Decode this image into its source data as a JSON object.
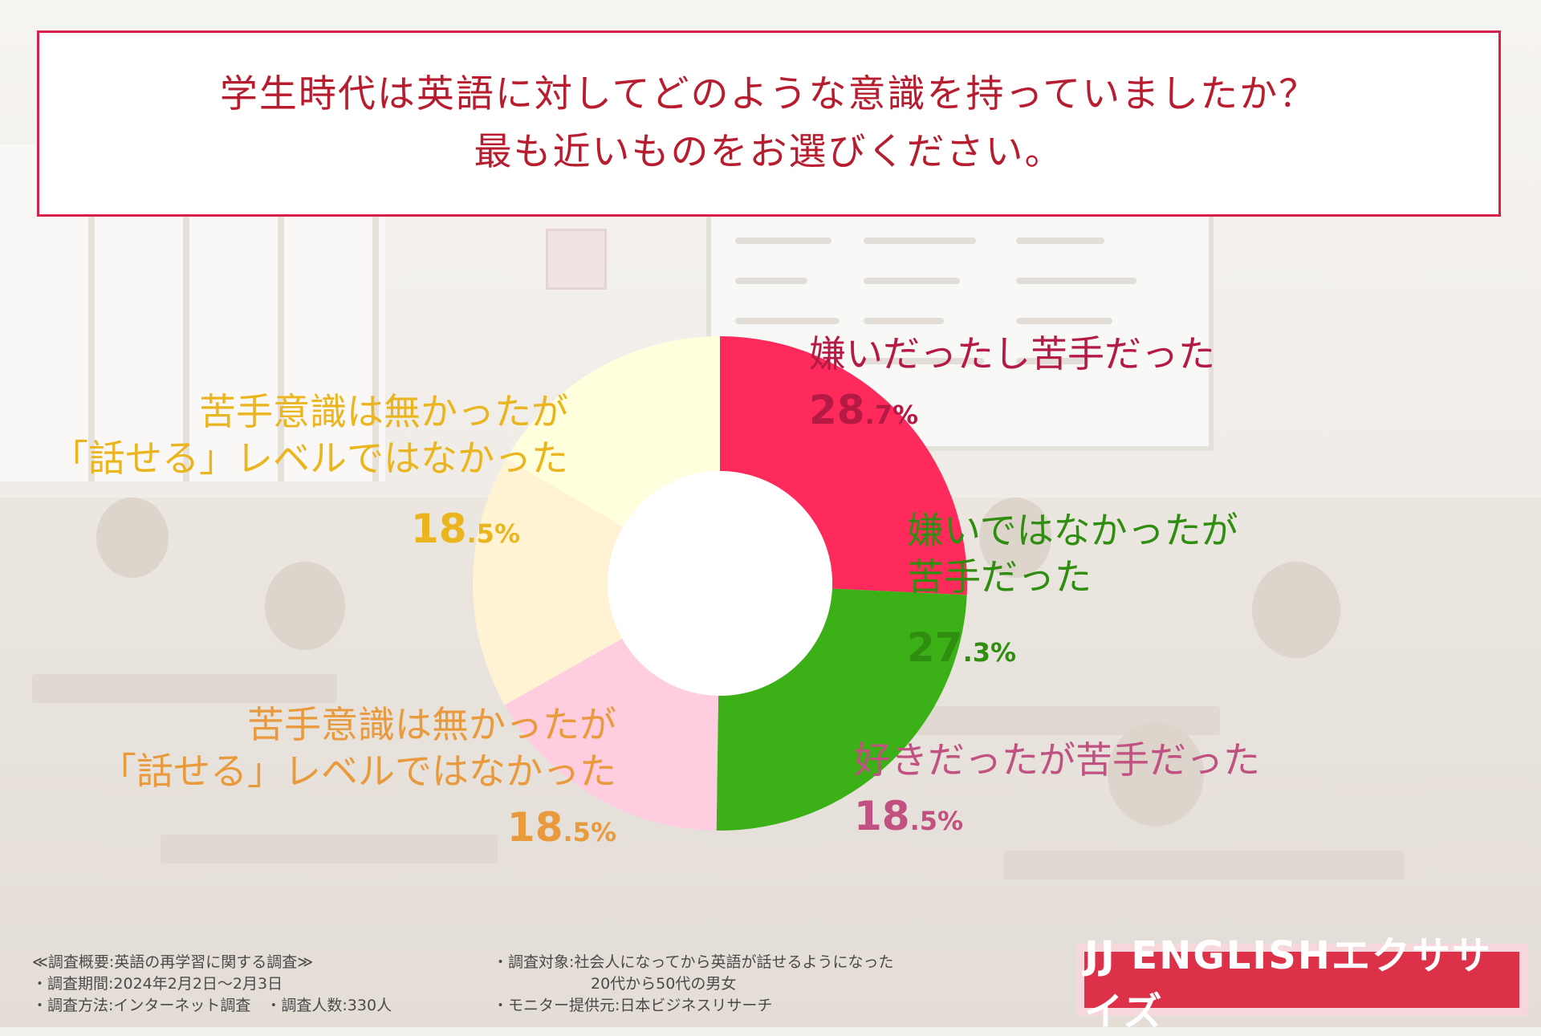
{
  "question": {
    "line1": "学生時代は英語に対してどのような意識を持っていましたか？",
    "line2": "最も近いものをお選びください。"
  },
  "chart_data": {
    "type": "pie",
    "variant": "donut",
    "slices": [
      {
        "label_lines": [
          "嫌いだったし苦手だった"
        ],
        "value": 28.7,
        "pct_int": "28",
        "pct_dec": ".7%",
        "color": "#ff2a5c",
        "label_color": "#b51a45"
      },
      {
        "label_lines": [
          "嫌いではなかったが",
          "苦手だった"
        ],
        "value": 27.3,
        "pct_int": "27",
        "pct_dec": ".3%",
        "color": "#3bb017",
        "label_color": "#2f8e10"
      },
      {
        "label_lines": [
          "好きだったが苦手だった"
        ],
        "value": 18.5,
        "pct_int": "18",
        "pct_dec": ".5%",
        "color": "#ffcde0",
        "label_color": "#c05180"
      },
      {
        "label_lines": [
          "苦手意識は無かったが",
          "「話せる」レベルではなかった"
        ],
        "value": 18.5,
        "pct_int": "18",
        "pct_dec": ".5%",
        "color": "#fff3d3",
        "label_color": "#e89a3c"
      },
      {
        "label_lines": [
          "苦手意識は無かったが",
          "「話せる」レベルではなかった"
        ],
        "value": 18.5,
        "pct_int": "18",
        "pct_dec": ".5%",
        "color": "#ffffde",
        "label_color": "#eab51f"
      }
    ]
  },
  "footer": {
    "overview": "≪調査概要:英語の再学習に関する調査≫",
    "period": "・調査期間:2024年2月2日～2月3日",
    "method": "・調査方法:インターネット調査　・調査人数:330人",
    "target_line1": "・調査対象:社会人になってから英語が話せるようになった",
    "target_line2": "20代から50代の男女",
    "provider": "・モニター提供元:日本ビジネスリサーチ"
  },
  "logo": {
    "text": "JJ ENGLISHエクササイズ"
  }
}
